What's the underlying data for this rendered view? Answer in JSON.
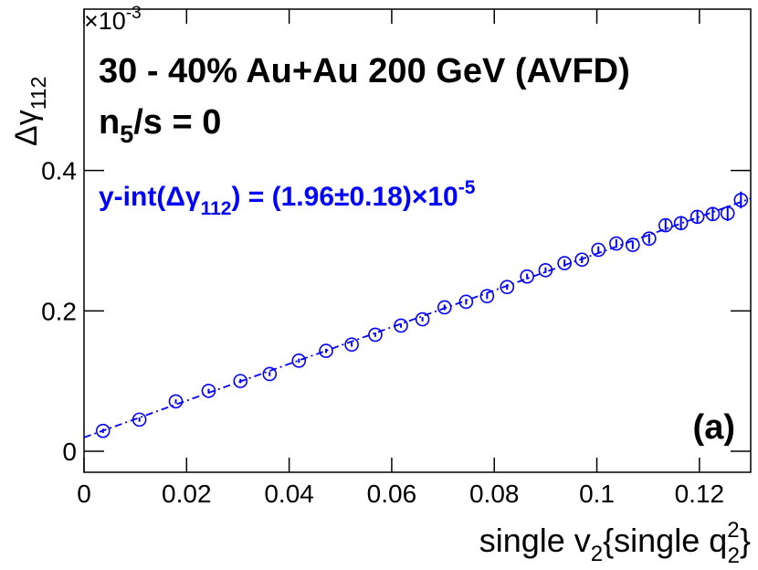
{
  "chart_data": {
    "type": "scatter",
    "title": "30 - 40% Au+Au 200 GeV (AVFD)",
    "subtitle_parts": [
      "n",
      "5",
      "/s = 0"
    ],
    "y_label_parts": [
      "Δγ",
      "112"
    ],
    "y_multiplier_parts": [
      "×10",
      "-3"
    ],
    "x_label_parts": [
      "single v",
      "2",
      "{single q",
      "2",
      "2",
      "}"
    ],
    "annotation_parts": [
      "y-int(Δγ",
      "112",
      ") = (1.96±0.18)×10",
      "-5"
    ],
    "panel_label": "(a)",
    "color": "#0000ff",
    "x": [
      0.0037,
      0.0108,
      0.0179,
      0.0243,
      0.0305,
      0.0362,
      0.0419,
      0.0472,
      0.0522,
      0.0568,
      0.0618,
      0.066,
      0.0703,
      0.0745,
      0.0786,
      0.0825,
      0.0864,
      0.09,
      0.0937,
      0.0971,
      0.1003,
      0.1038,
      0.107,
      0.1102,
      0.1134,
      0.1164,
      0.1196,
      0.1226,
      0.1255,
      0.1281
    ],
    "values": [
      0.029,
      0.045,
      0.071,
      0.086,
      0.1,
      0.11,
      0.129,
      0.143,
      0.152,
      0.166,
      0.179,
      0.188,
      0.205,
      0.213,
      0.221,
      0.234,
      0.249,
      0.258,
      0.268,
      0.273,
      0.287,
      0.296,
      0.294,
      0.303,
      0.322,
      0.325,
      0.334,
      0.338,
      0.339,
      0.358
    ],
    "errors": [
      0.003,
      0.003,
      0.003,
      0.003,
      0.003,
      0.003,
      0.003,
      0.003,
      0.003,
      0.003,
      0.003,
      0.003,
      0.004,
      0.004,
      0.004,
      0.004,
      0.004,
      0.004,
      0.005,
      0.005,
      0.005,
      0.006,
      0.006,
      0.007,
      0.008,
      0.008,
      0.009,
      0.01,
      0.011,
      0.012
    ],
    "fit": {
      "intercept": 0.0196,
      "slope": 2.62
    },
    "xlim": [
      0,
      0.13
    ],
    "ylim": [
      -0.03,
      0.63
    ],
    "xticks": [
      0,
      0.02,
      0.04,
      0.06,
      0.08,
      0.1,
      0.12
    ],
    "yticks": [
      0,
      0.2,
      0.4
    ]
  }
}
